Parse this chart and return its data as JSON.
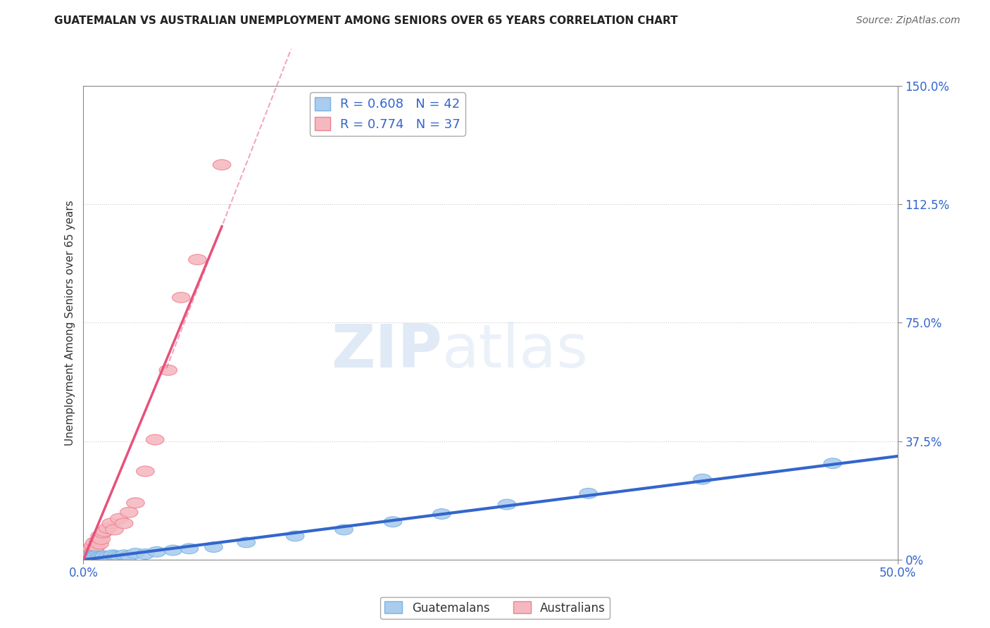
{
  "title": "GUATEMALAN VS AUSTRALIAN UNEMPLOYMENT AMONG SENIORS OVER 65 YEARS CORRELATION CHART",
  "source": "Source: ZipAtlas.com",
  "ylabel": "Unemployment Among Seniors over 65 years",
  "xlim": [
    0.0,
    0.5
  ],
  "ylim": [
    0.0,
    1.5
  ],
  "xticks": [
    0.0,
    0.5
  ],
  "xticklabels": [
    "0.0%",
    "50.0%"
  ],
  "yticks": [
    0.0,
    0.375,
    0.75,
    1.125,
    1.5
  ],
  "yticklabels": [
    "0%",
    "37.5%",
    "75.0%",
    "112.5%",
    "150.0%"
  ],
  "guatemalan_x": [
    0.001,
    0.002,
    0.002,
    0.003,
    0.003,
    0.004,
    0.004,
    0.005,
    0.005,
    0.006,
    0.006,
    0.007,
    0.008,
    0.008,
    0.009,
    0.01,
    0.01,
    0.011,
    0.012,
    0.013,
    0.015,
    0.017,
    0.018,
    0.02,
    0.022,
    0.025,
    0.028,
    0.032,
    0.038,
    0.045,
    0.055,
    0.065,
    0.08,
    0.1,
    0.13,
    0.16,
    0.19,
    0.22,
    0.26,
    0.31,
    0.38,
    0.46
  ],
  "guatemalan_y": [
    0.005,
    0.003,
    0.008,
    0.005,
    0.01,
    0.004,
    0.007,
    0.006,
    0.012,
    0.005,
    0.01,
    0.008,
    0.006,
    0.012,
    0.007,
    0.005,
    0.01,
    0.008,
    0.006,
    0.012,
    0.01,
    0.008,
    0.015,
    0.012,
    0.01,
    0.015,
    0.012,
    0.02,
    0.018,
    0.025,
    0.03,
    0.035,
    0.04,
    0.055,
    0.075,
    0.095,
    0.12,
    0.145,
    0.175,
    0.21,
    0.255,
    0.305
  ],
  "australian_x": [
    0.001,
    0.001,
    0.002,
    0.002,
    0.002,
    0.003,
    0.003,
    0.003,
    0.004,
    0.004,
    0.005,
    0.005,
    0.005,
    0.006,
    0.006,
    0.007,
    0.007,
    0.008,
    0.009,
    0.01,
    0.01,
    0.011,
    0.012,
    0.013,
    0.015,
    0.017,
    0.019,
    0.022,
    0.025,
    0.028,
    0.032,
    0.038,
    0.044,
    0.052,
    0.06,
    0.07,
    0.085
  ],
  "australian_y": [
    0.005,
    0.015,
    0.008,
    0.02,
    0.01,
    0.012,
    0.025,
    0.018,
    0.015,
    0.022,
    0.018,
    0.028,
    0.035,
    0.025,
    0.045,
    0.03,
    0.055,
    0.042,
    0.06,
    0.05,
    0.075,
    0.065,
    0.085,
    0.09,
    0.1,
    0.115,
    0.095,
    0.13,
    0.115,
    0.15,
    0.18,
    0.28,
    0.38,
    0.6,
    0.83,
    0.95,
    1.25
  ],
  "guatemalan_color": "#7ab3e0",
  "guatemalan_color_fill": "#aaccee",
  "australian_color": "#f08090",
  "australian_color_fill": "#f5b8c0",
  "line_guatemalan": "#3366cc",
  "line_australian": "#e8507a",
  "R_guatemalan": 0.608,
  "N_guatemalan": 42,
  "R_australian": 0.774,
  "N_australian": 37,
  "watermark_zip": "ZIP",
  "watermark_atlas": "atlas",
  "background_color": "#ffffff",
  "grid_color": "#cccccc",
  "grid_style": "dotted"
}
